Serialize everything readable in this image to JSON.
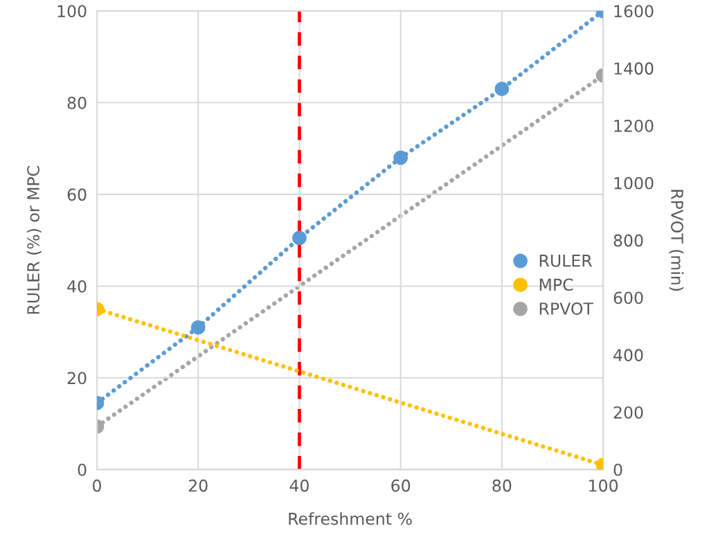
{
  "chart_data": {
    "type": "line",
    "xlabel": "Refreshment %",
    "ylabel": "RULER (%) or MPC",
    "y2label": "RPVOT (min)",
    "xlim": [
      0,
      100
    ],
    "xticks": [
      0,
      20,
      40,
      60,
      80,
      100
    ],
    "ylim": [
      0,
      100
    ],
    "yticks": [
      0,
      20,
      40,
      60,
      80,
      100
    ],
    "y2lim": [
      0,
      1600
    ],
    "y2ticks": [
      0,
      200,
      400,
      600,
      800,
      1000,
      1200,
      1400,
      1600
    ],
    "grid": true,
    "legend": "right",
    "marker": "circle",
    "line_style": "dotted",
    "ref_lines": [
      {
        "axis": "x",
        "value": 40,
        "color": "#ff0000",
        "line_style": "dashed"
      }
    ],
    "series": [
      {
        "name": "RULER",
        "color": "#5b9bd5",
        "x": [
          0,
          20,
          40,
          60,
          80,
          100
        ],
        "values": [
          14.5,
          31,
          50.5,
          68,
          83,
          100
        ]
      },
      {
        "name": "MPC",
        "color": "#ffc000",
        "x": [
          0,
          100
        ],
        "values": [
          35,
          1
        ]
      },
      {
        "name": "RPVOT",
        "color": "#a5a5a5",
        "axis": "y2",
        "x": [
          0,
          100
        ],
        "values": [
          150,
          1375
        ]
      }
    ]
  }
}
